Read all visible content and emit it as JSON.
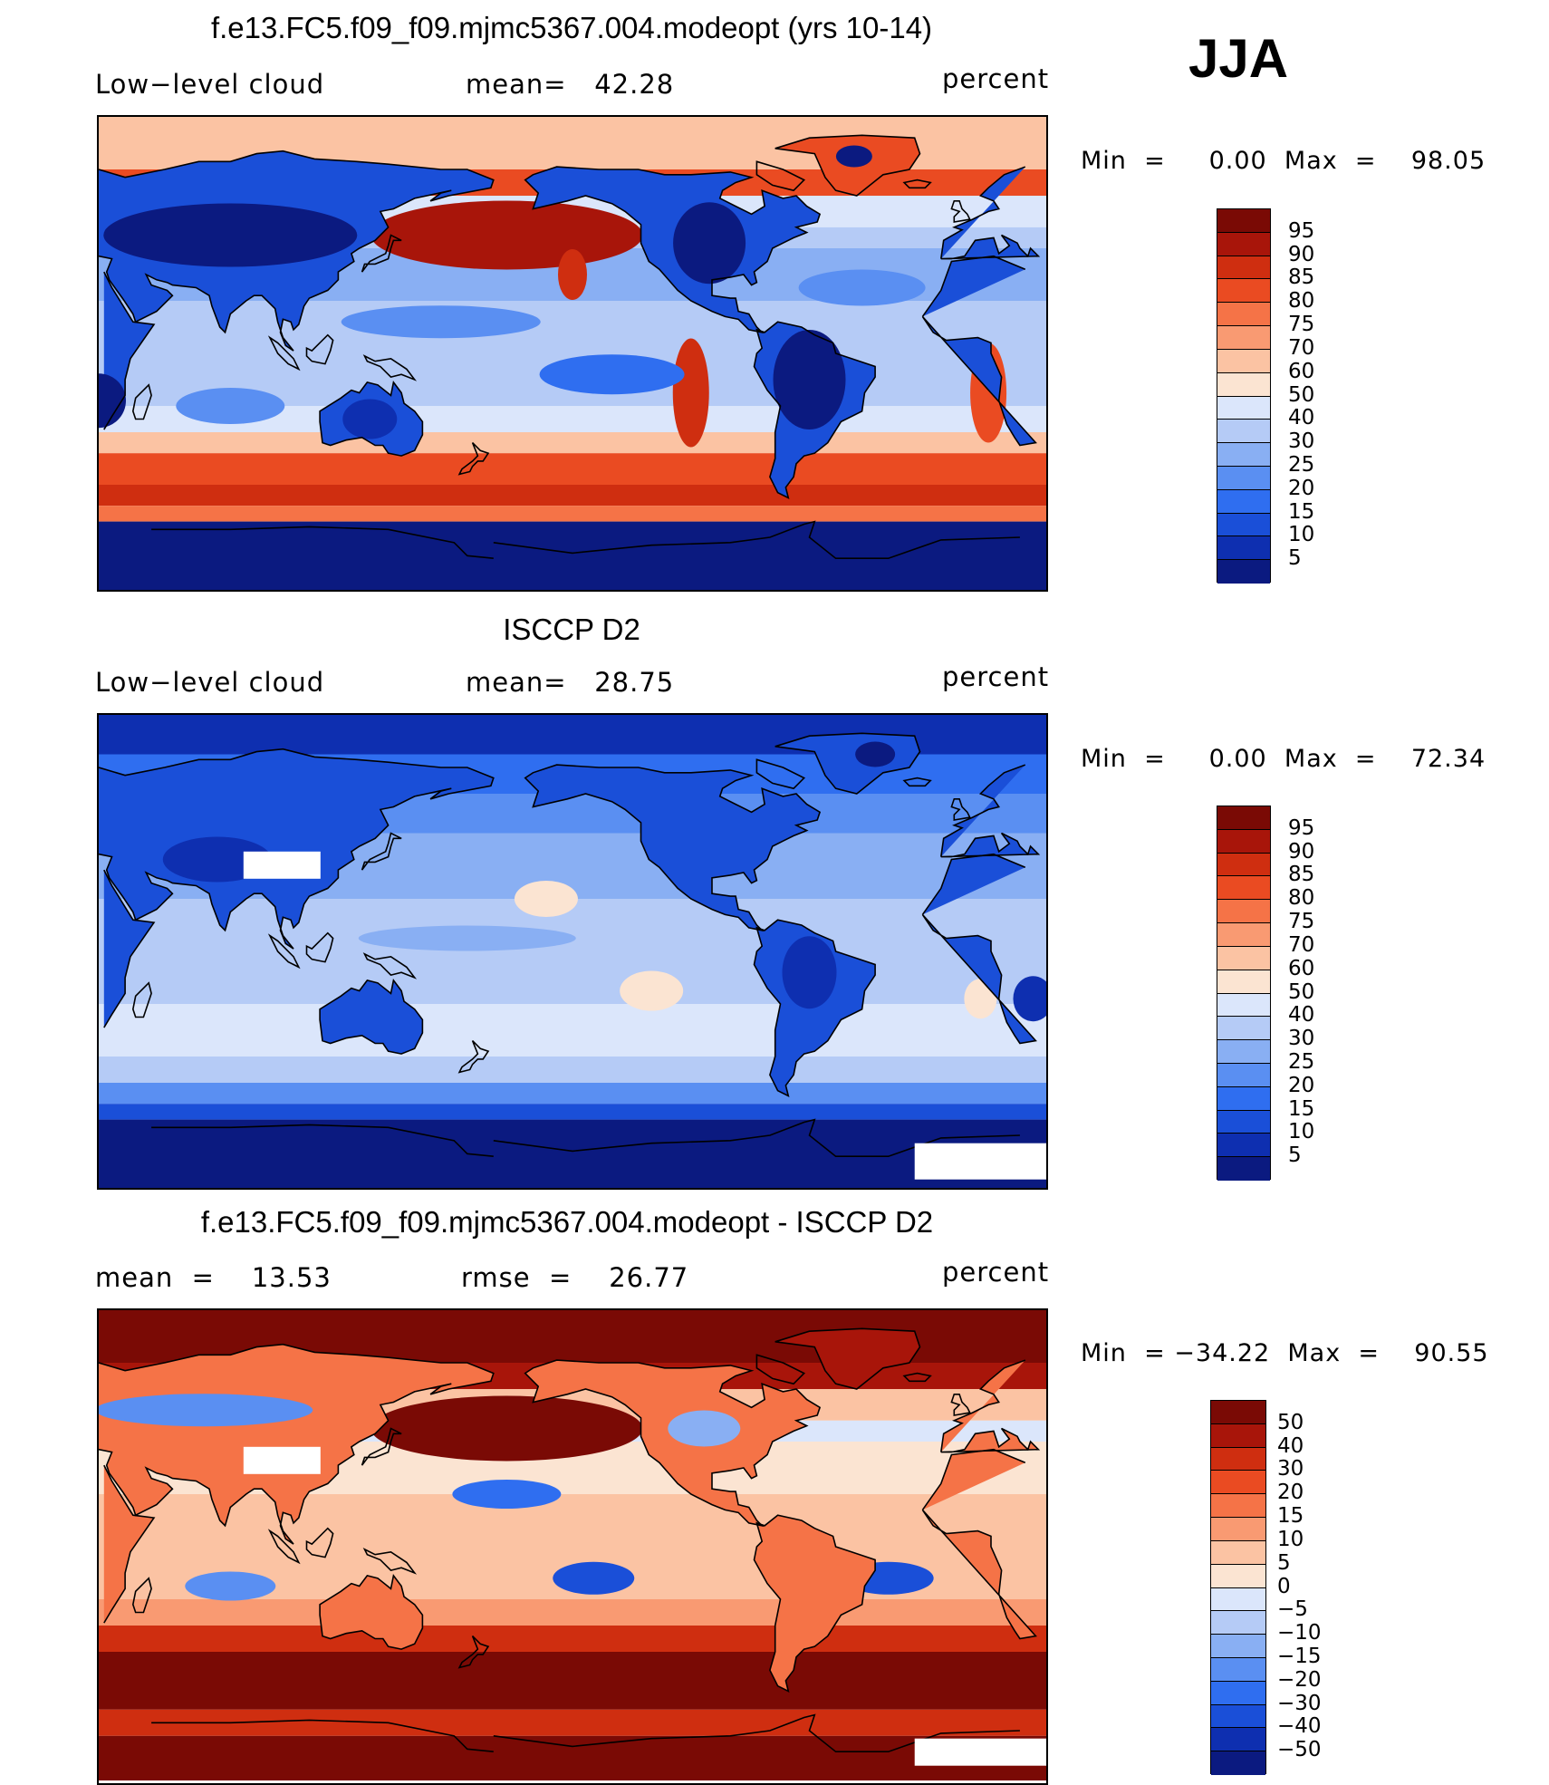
{
  "season": "JJA",
  "palette_model": [
    "#0b1a80",
    "#0e2fb0",
    "#1a4fd8",
    "#2f6ef0",
    "#5a8ff2",
    "#89aff3",
    "#b5cbf6",
    "#dbe6fb",
    "#fbe4d2",
    "#fbc3a3",
    "#f99a72",
    "#f57347",
    "#ea4b22",
    "#cf2e10",
    "#a8150a",
    "#7a0a05"
  ],
  "palette_diff": [
    "#0b1a80",
    "#0e2fb0",
    "#1a4fd8",
    "#2f6ef0",
    "#5a8ff2",
    "#89aff3",
    "#b5cbf6",
    "#dbe6fb",
    "#fbe4d2",
    "#fbc3a3",
    "#f99a72",
    "#f57347",
    "#ea4b22",
    "#cf2e10",
    "#a8150a",
    "#7a0a05"
  ],
  "panels": [
    {
      "title": "f.e13.FC5.f09_f09.mjmc5367.004.modeopt (yrs 10-14)",
      "left_label": "Low−level cloud",
      "mid_label": "mean=   42.28",
      "right_label": "percent",
      "minmax": "Min  =     0.00  Max  =    98.05",
      "ticks": [
        "95",
        "90",
        "85",
        "80",
        "75",
        "70",
        "60",
        "50",
        "40",
        "30",
        "25",
        "20",
        "15",
        "10",
        "5"
      ],
      "variant": "model"
    },
    {
      "title": "ISCCP D2",
      "left_label": "Low−level cloud",
      "mid_label": "mean=   28.75",
      "right_label": "percent",
      "minmax": "Min  =     0.00  Max  =    72.34",
      "ticks": [
        "95",
        "90",
        "85",
        "80",
        "75",
        "70",
        "60",
        "50",
        "40",
        "30",
        "25",
        "20",
        "15",
        "10",
        "5"
      ],
      "variant": "obs"
    },
    {
      "title": "f.e13.FC5.f09_f09.mjmc5367.004.modeopt - ISCCP D2",
      "left_label": "mean  =    13.53",
      "mid_label": "rmse  =    26.77",
      "right_label": "percent",
      "minmax": "Min  = −34.22  Max  =    90.55",
      "ticks": [
        "50",
        "40",
        "30",
        "20",
        "15",
        "10",
        "5",
        "0",
        "−5",
        "−10",
        "−15",
        "−20",
        "−30",
        "−40",
        "−50"
      ],
      "variant": "diff"
    }
  ]
}
